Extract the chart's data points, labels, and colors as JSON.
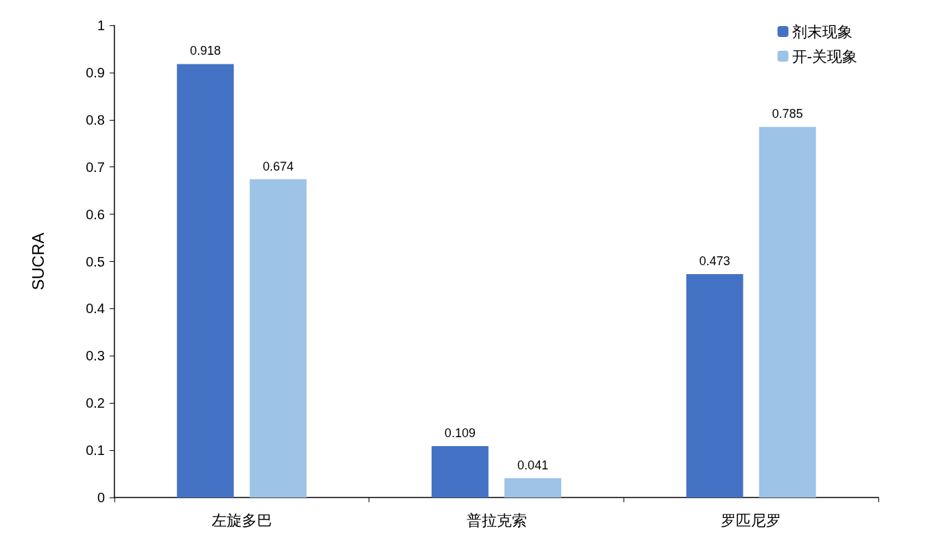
{
  "chart_data": {
    "type": "bar",
    "ylabel": "SUCRA",
    "categories": [
      "左旋多巴",
      "普拉克索",
      "罗匹尼罗"
    ],
    "series": [
      {
        "name": "剂末现象",
        "color": "#4472c4",
        "values": [
          0.918,
          0.109,
          0.473
        ]
      },
      {
        "name": "开-关现象",
        "color": "#9dc3e6",
        "values": [
          0.674,
          0.041,
          0.785
        ]
      }
    ],
    "ylim": [
      0,
      1
    ],
    "yticks": [
      0,
      0.1,
      0.2,
      0.3,
      0.4,
      0.5,
      0.6,
      0.7,
      0.8,
      0.9,
      1
    ],
    "data_labels": true,
    "grid": false,
    "legend": "top right"
  }
}
